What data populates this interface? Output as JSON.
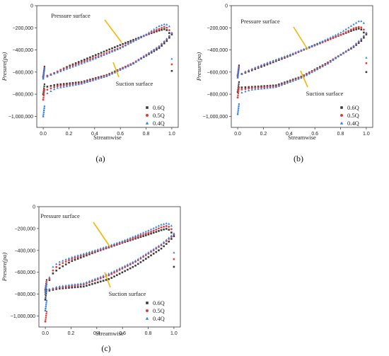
{
  "colors": {
    "q06": "#3a3a3a",
    "q05": "#e53b3b",
    "q04": "#2d7ee8",
    "arrow": "#f2b705"
  },
  "chart_data": [
    {
      "panel": "(a)",
      "type": "scatter",
      "xlabel": "Streamwise",
      "ylabel": "Presure(pa)",
      "xlim": [
        -0.05,
        1.05
      ],
      "ylim": [
        -1100000,
        0
      ],
      "xticks": [
        "0.0",
        "0.2",
        "0.4",
        "0.6",
        "0.8",
        "1.0"
      ],
      "yticks": [
        "0",
        "−200,000",
        "−400,000",
        "−600,000",
        "−800,000",
        "−1,000,000"
      ],
      "annotations": [
        "Pressure surface",
        "Suction surface"
      ],
      "legend": "bottom-right",
      "series": [
        {
          "name": "0.6Q",
          "marker": "square",
          "pressure": [
            [
              0,
              -640000
            ],
            [
              0.05,
              -630000
            ],
            [
              0.2,
              -545000
            ],
            [
              0.4,
              -450000
            ],
            [
              0.6,
              -355000
            ],
            [
              0.8,
              -265000
            ],
            [
              0.9,
              -225000
            ],
            [
              0.95,
              -210000
            ],
            [
              0.98,
              -240000
            ],
            [
              1.0,
              -590000
            ]
          ],
          "suction": [
            [
              0,
              -800000
            ],
            [
              0.02,
              -735000
            ],
            [
              0.1,
              -715000
            ],
            [
              0.3,
              -690000
            ],
            [
              0.5,
              -625000
            ],
            [
              0.7,
              -520000
            ],
            [
              0.9,
              -385000
            ],
            [
              0.96,
              -320000
            ],
            [
              1.0,
              -260000
            ]
          ]
        },
        {
          "name": "0.5Q",
          "marker": "circle",
          "pressure": [
            [
              0,
              -650000
            ],
            [
              0.05,
              -625000
            ],
            [
              0.2,
              -555000
            ],
            [
              0.4,
              -470000
            ],
            [
              0.6,
              -380000
            ],
            [
              0.8,
              -265000
            ],
            [
              0.9,
              -210000
            ],
            [
              0.95,
              -190000
            ],
            [
              0.98,
              -215000
            ],
            [
              1.0,
              -530000
            ]
          ],
          "suction": [
            [
              0,
              -850000
            ],
            [
              0.02,
              -765000
            ],
            [
              0.1,
              -730000
            ],
            [
              0.3,
              -700000
            ],
            [
              0.5,
              -630000
            ],
            [
              0.7,
              -520000
            ],
            [
              0.9,
              -370000
            ],
            [
              0.96,
              -305000
            ],
            [
              1.0,
              -250000
            ]
          ]
        },
        {
          "name": "0.4Q",
          "marker": "triangle",
          "pressure": [
            [
              0,
              -660000
            ],
            [
              0.05,
              -630000
            ],
            [
              0.2,
              -565000
            ],
            [
              0.4,
              -480000
            ],
            [
              0.6,
              -385000
            ],
            [
              0.8,
              -260000
            ],
            [
              0.9,
              -185000
            ],
            [
              0.95,
              -165000
            ],
            [
              0.98,
              -180000
            ],
            [
              1.0,
              -480000
            ]
          ],
          "suction": [
            [
              0,
              -1000000
            ],
            [
              0.02,
              -800000
            ],
            [
              0.1,
              -745000
            ],
            [
              0.3,
              -705000
            ],
            [
              0.5,
              -635000
            ],
            [
              0.7,
              -525000
            ],
            [
              0.9,
              -370000
            ],
            [
              0.96,
              -300000
            ],
            [
              1.0,
              -245000
            ]
          ]
        }
      ]
    },
    {
      "panel": "(b)",
      "type": "scatter",
      "xlabel": "Streamwise",
      "ylabel": "Presure(pa)",
      "xlim": [
        -0.05,
        1.05
      ],
      "ylim": [
        -1100000,
        0
      ],
      "xticks": [
        "0.0",
        "0.2",
        "0.4",
        "0.6",
        "0.8",
        "1.0"
      ],
      "yticks": [
        "0",
        "−200,000",
        "−400,000",
        "−600,000",
        "−800,000",
        "−1,000,000"
      ],
      "annotations": [
        "Pressure surface",
        "Suction surface"
      ],
      "legend": "bottom-right",
      "series": [
        {
          "name": "0.6Q",
          "marker": "square",
          "pressure": [
            [
              0,
              -630000
            ],
            [
              0.05,
              -610000
            ],
            [
              0.2,
              -545000
            ],
            [
              0.4,
              -455000
            ],
            [
              0.6,
              -355000
            ],
            [
              0.8,
              -265000
            ],
            [
              0.9,
              -220000
            ],
            [
              0.95,
              -205000
            ],
            [
              0.98,
              -235000
            ],
            [
              1.0,
              -600000
            ]
          ],
          "suction": [
            [
              0,
              -780000
            ],
            [
              0.02,
              -740000
            ],
            [
              0.1,
              -735000
            ],
            [
              0.3,
              -720000
            ],
            [
              0.5,
              -640000
            ],
            [
              0.7,
              -515000
            ],
            [
              0.9,
              -375000
            ],
            [
              0.96,
              -320000
            ],
            [
              1.0,
              -260000
            ]
          ]
        },
        {
          "name": "0.5Q",
          "marker": "circle",
          "pressure": [
            [
              0,
              -640000
            ],
            [
              0.05,
              -605000
            ],
            [
              0.2,
              -535000
            ],
            [
              0.4,
              -450000
            ],
            [
              0.6,
              -360000
            ],
            [
              0.8,
              -265000
            ],
            [
              0.9,
              -205000
            ],
            [
              0.95,
              -190000
            ],
            [
              0.98,
              -210000
            ],
            [
              1.0,
              -520000
            ]
          ],
          "suction": [
            [
              0,
              -830000
            ],
            [
              0.02,
              -760000
            ],
            [
              0.1,
              -745000
            ],
            [
              0.3,
              -730000
            ],
            [
              0.5,
              -645000
            ],
            [
              0.7,
              -520000
            ],
            [
              0.9,
              -370000
            ],
            [
              0.96,
              -305000
            ],
            [
              1.0,
              -250000
            ]
          ]
        },
        {
          "name": "0.4Q",
          "marker": "triangle",
          "pressure": [
            [
              0,
              -650000
            ],
            [
              0.05,
              -600000
            ],
            [
              0.2,
              -530000
            ],
            [
              0.4,
              -445000
            ],
            [
              0.6,
              -355000
            ],
            [
              0.8,
              -245000
            ],
            [
              0.9,
              -170000
            ],
            [
              0.95,
              -135000
            ],
            [
              0.98,
              -150000
            ],
            [
              1.0,
              -470000
            ]
          ],
          "suction": [
            [
              0,
              -980000
            ],
            [
              0.02,
              -790000
            ],
            [
              0.1,
              -760000
            ],
            [
              0.3,
              -735000
            ],
            [
              0.5,
              -650000
            ],
            [
              0.7,
              -525000
            ],
            [
              0.9,
              -365000
            ],
            [
              0.96,
              -300000
            ],
            [
              1.0,
              -245000
            ]
          ]
        }
      ]
    },
    {
      "panel": "(c)",
      "type": "scatter",
      "xlabel": "Streamwise",
      "ylabel": "Presure(pa)",
      "xlim": [
        -0.05,
        1.05
      ],
      "ylim": [
        -1100000,
        0
      ],
      "xticks": [
        "0.0",
        "0.2",
        "0.4",
        "0.6",
        "0.8",
        "1.0"
      ],
      "yticks": [
        "0",
        "−200,000",
        "−400,000",
        "−600,000",
        "−800,000",
        "−1,000,000"
      ],
      "annotations": [
        "Pressure surface",
        "Suction surface"
      ],
      "legend": "bottom-right",
      "series": [
        {
          "name": "0.6Q",
          "marker": "square",
          "pressure": [
            [
              0,
              -760000
            ],
            [
              0.05,
              -620000
            ],
            [
              0.1,
              -570000
            ],
            [
              0.2,
              -500000
            ],
            [
              0.4,
              -410000
            ],
            [
              0.6,
              -330000
            ],
            [
              0.8,
              -255000
            ],
            [
              0.9,
              -215000
            ],
            [
              0.95,
              -200000
            ],
            [
              0.98,
              -230000
            ],
            [
              1.0,
              -550000
            ]
          ],
          "suction": [
            [
              0,
              -850000
            ],
            [
              0.02,
              -770000
            ],
            [
              0.1,
              -750000
            ],
            [
              0.3,
              -730000
            ],
            [
              0.5,
              -660000
            ],
            [
              0.7,
              -540000
            ],
            [
              0.9,
              -385000
            ],
            [
              0.96,
              -320000
            ],
            [
              1.0,
              -270000
            ]
          ]
        },
        {
          "name": "0.5Q",
          "marker": "circle",
          "pressure": [
            [
              0,
              -780000
            ],
            [
              0.05,
              -595000
            ],
            [
              0.1,
              -535000
            ],
            [
              0.2,
              -480000
            ],
            [
              0.4,
              -405000
            ],
            [
              0.6,
              -325000
            ],
            [
              0.8,
              -240000
            ],
            [
              0.9,
              -190000
            ],
            [
              0.95,
              -175000
            ],
            [
              0.98,
              -200000
            ],
            [
              1.0,
              -480000
            ]
          ],
          "suction": [
            [
              0,
              -1050000
            ],
            [
              0.02,
              -760000
            ],
            [
              0.1,
              -740000
            ],
            [
              0.3,
              -710000
            ],
            [
              0.5,
              -625000
            ],
            [
              0.7,
              -505000
            ],
            [
              0.9,
              -355000
            ],
            [
              0.96,
              -295000
            ],
            [
              1.0,
              -255000
            ]
          ]
        },
        {
          "name": "0.4Q",
          "marker": "triangle",
          "pressure": [
            [
              0,
              -800000
            ],
            [
              0.05,
              -560000
            ],
            [
              0.1,
              -510000
            ],
            [
              0.2,
              -465000
            ],
            [
              0.4,
              -395000
            ],
            [
              0.6,
              -315000
            ],
            [
              0.8,
              -220000
            ],
            [
              0.9,
              -165000
            ],
            [
              0.95,
              -150000
            ],
            [
              0.98,
              -170000
            ],
            [
              1.0,
              -420000
            ]
          ],
          "suction": [
            [
              0,
              -950000
            ],
            [
              0.02,
              -760000
            ],
            [
              0.1,
              -730000
            ],
            [
              0.3,
              -700000
            ],
            [
              0.5,
              -610000
            ],
            [
              0.7,
              -495000
            ],
            [
              0.9,
              -345000
            ],
            [
              0.96,
              -285000
            ],
            [
              1.0,
              -245000
            ]
          ]
        }
      ]
    }
  ]
}
